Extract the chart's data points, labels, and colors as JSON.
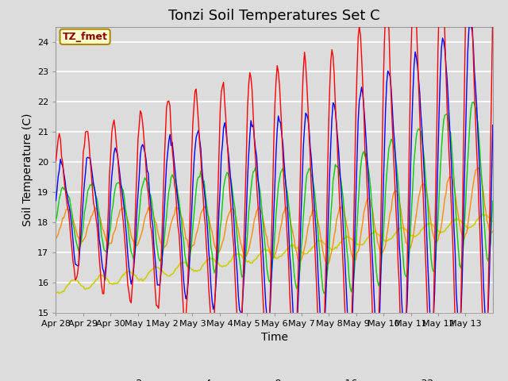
{
  "title": "Tonzi Soil Temperatures Set C",
  "xlabel": "Time",
  "ylabel": "Soil Temperature (C)",
  "ylim": [
    15.0,
    24.5
  ],
  "yticks": [
    15.0,
    16.0,
    17.0,
    18.0,
    19.0,
    20.0,
    21.0,
    22.0,
    23.0,
    24.0
  ],
  "xtick_labels": [
    "Apr 28",
    "Apr 29",
    "Apr 30",
    "May 1",
    "May 2",
    "May 3",
    "May 4",
    "May 5",
    "May 6",
    "May 7",
    "May 8",
    "May 9",
    "May 10",
    "May 11",
    "May 12",
    "May 13"
  ],
  "colors": {
    "-2cm": "#FF0000",
    "-4cm": "#0000FF",
    "-8cm": "#00CC00",
    "-16cm": "#FF8C00",
    "-32cm": "#CCCC00"
  },
  "annotation_text": "TZ_fmet",
  "annotation_color": "#8B0000",
  "annotation_bg": "#FFFFCC",
  "background_color": "#DCDCDC",
  "title_fontsize": 13,
  "label_fontsize": 10,
  "tick_fontsize": 8
}
